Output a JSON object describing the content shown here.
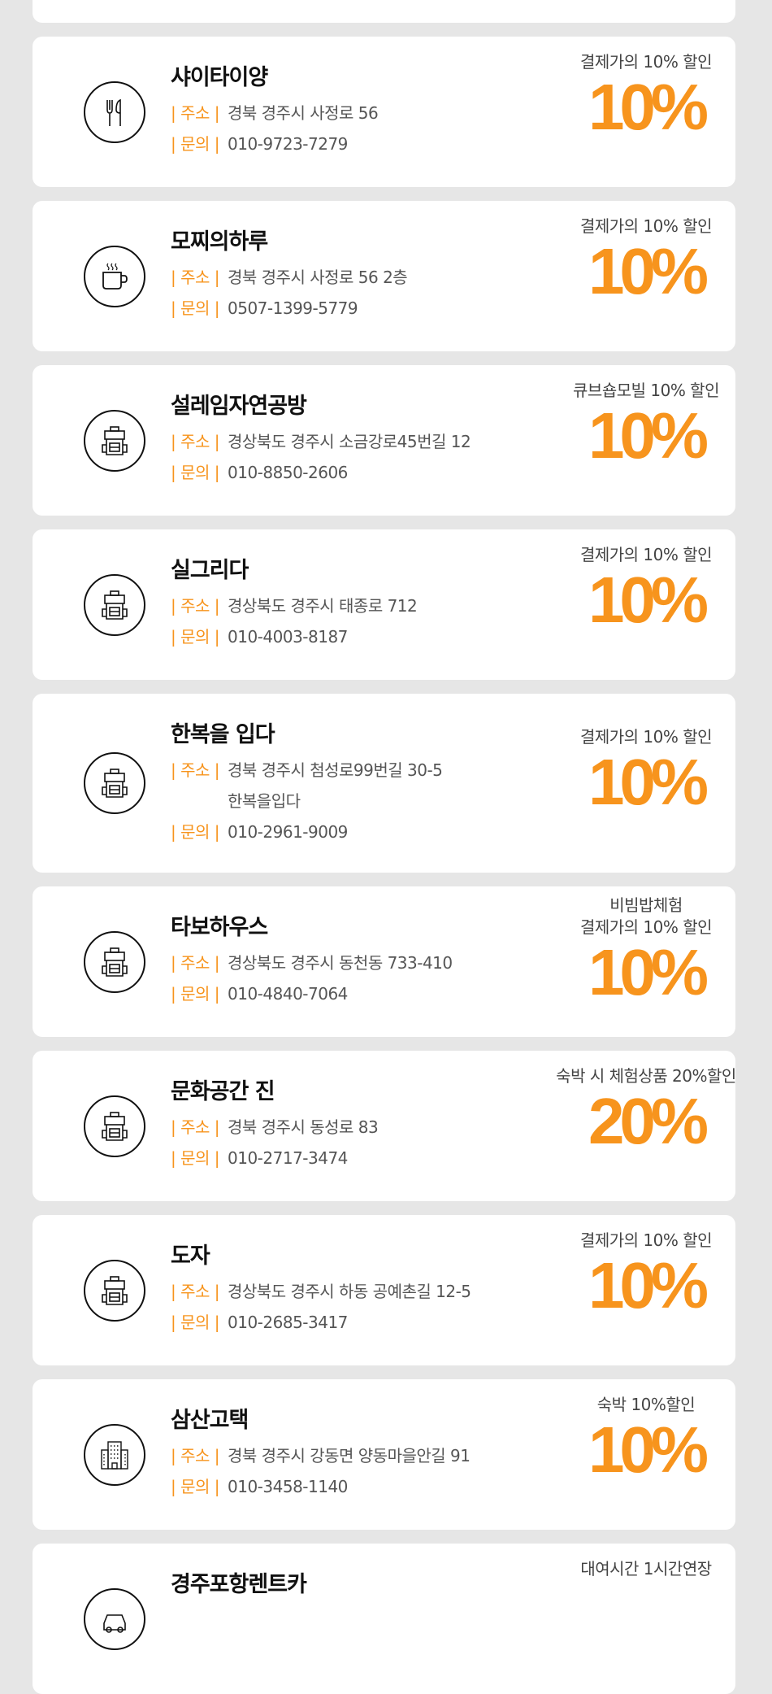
{
  "accent_color": "#f7941d",
  "labels": {
    "address": "| 주소 |",
    "contact": "| 문의 |"
  },
  "stores": [
    {
      "name": "샤이타이양",
      "icon": "fork-knife-icon",
      "address": "경북 경주시 사정로 56",
      "phone": "010-9723-7279",
      "caption": "결제가의 10% 할인",
      "discount": "10%"
    },
    {
      "name": "모찌의하루",
      "icon": "coffee-cup-icon",
      "address": "경북 경주시 사정로 56 2층",
      "phone": "0507-1399-5779",
      "caption": "결제가의 10% 할인",
      "discount": "10%"
    },
    {
      "name": "설레임자연공방",
      "icon": "backpack-icon",
      "address": "경상북도 경주시 소금강로45번길 12",
      "phone": "010-8850-2606",
      "caption": "큐브숍모빌 10% 할인",
      "discount": "10%"
    },
    {
      "name": "실그리다",
      "icon": "backpack-icon",
      "address": "경상북도 경주시 태종로 712",
      "phone": "010-4003-8187",
      "caption": "결제가의 10% 할인",
      "discount": "10%"
    },
    {
      "name": "한복을 입다",
      "icon": "backpack-icon",
      "address": "경북 경주시 첨성로99번길 30-5\n한복을입다",
      "phone": "010-2961-9009",
      "caption": "결제가의 10% 할인",
      "discount": "10%"
    },
    {
      "name": "타보하우스",
      "icon": "backpack-icon",
      "address": "경상북도 경주시 동천동 733-410",
      "phone": "010-4840-7064",
      "caption": "비빔밥체험\n결제가의 10% 할인",
      "discount": "10%"
    },
    {
      "name": "문화공간 진",
      "icon": "backpack-icon",
      "address": "경북 경주시 동성로 83",
      "phone": "010-2717-3474",
      "caption": "숙박 시 체험상품 20%할인",
      "discount": "20%"
    },
    {
      "name": "도자",
      "icon": "backpack-icon",
      "address": "경상북도 경주시 하동 공예촌길 12-5",
      "phone": "010-2685-3417",
      "caption": "결제가의 10% 할인",
      "discount": "10%"
    },
    {
      "name": "삼산고택",
      "icon": "building-icon",
      "address": "경북 경주시 강동면 양동마을안길 91",
      "phone": "010-3458-1140",
      "caption": "숙박 10%할인",
      "discount": "10%"
    },
    {
      "name": "경주포항렌트카",
      "icon": "car-icon",
      "caption": "대여시간 1시간연장"
    }
  ]
}
